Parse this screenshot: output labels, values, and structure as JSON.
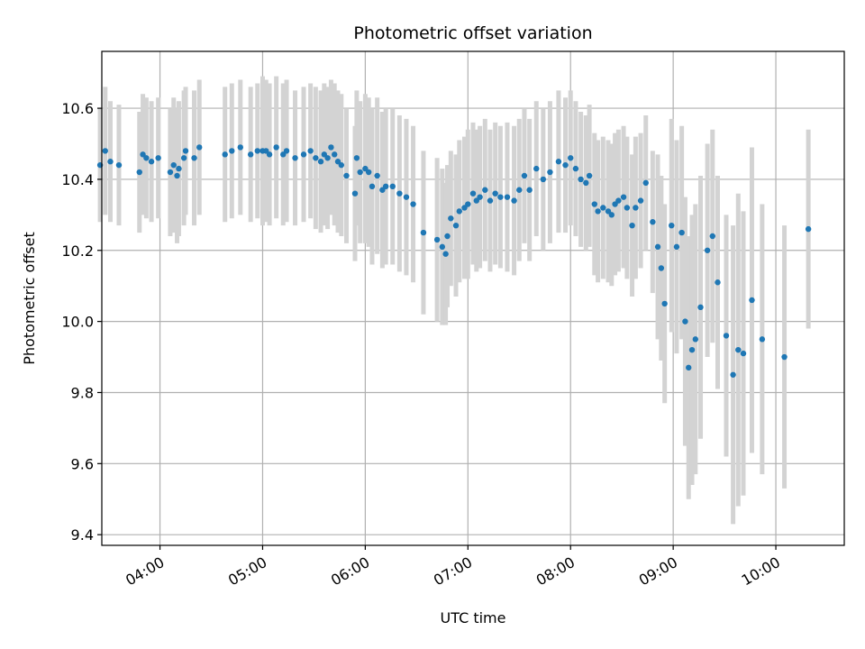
{
  "chart_data": {
    "type": "scatter",
    "title": "Photometric offset variation",
    "xlabel": "UTC time",
    "ylabel": "Photometric offset",
    "x_ticks": [
      "04:00",
      "05:00",
      "06:00",
      "07:00",
      "08:00",
      "09:00",
      "10:00"
    ],
    "y_ticks": [
      "9.4",
      "9.6",
      "9.8",
      "10.0",
      "10.2",
      "10.4",
      "10.6"
    ],
    "xlim": [
      "03:26",
      "10:40"
    ],
    "ylim": [
      9.37,
      10.76
    ],
    "grid": true,
    "colors": {
      "points": "#1f77b4",
      "errorbars": "#d3d3d3",
      "grid": "#b0b0b0"
    },
    "series": [
      {
        "x": [
          "03:25",
          "03:28",
          "03:31",
          "03:36",
          "03:48",
          "03:50",
          "03:52",
          "03:55",
          "03:59",
          "04:06",
          "04:08",
          "04:10",
          "04:11",
          "04:14",
          "04:15",
          "04:20",
          "04:23",
          "04:38",
          "04:42",
          "04:47",
          "04:53",
          "04:57",
          "05:00",
          "05:02",
          "05:04",
          "05:08",
          "05:12",
          "05:14",
          "05:19",
          "05:24",
          "05:28",
          "05:31",
          "05:34",
          "05:36",
          "05:38",
          "05:40",
          "05:42",
          "05:44",
          "05:46",
          "05:49",
          "05:54",
          "05:55",
          "05:57",
          "06:00",
          "06:02",
          "06:04",
          "06:07",
          "06:10",
          "06:12",
          "06:16",
          "06:20",
          "06:24",
          "06:28",
          "06:34",
          "06:42",
          "06:45",
          "06:47",
          "06:48",
          "06:50",
          "06:53",
          "06:55",
          "06:58",
          "07:00",
          "07:03",
          "07:05",
          "07:07",
          "07:10",
          "07:13",
          "07:16",
          "07:19",
          "07:23",
          "07:27",
          "07:30",
          "07:33",
          "07:36",
          "07:40",
          "07:44",
          "07:48",
          "07:53",
          "07:57",
          "08:00",
          "08:03",
          "08:06",
          "08:09",
          "08:11",
          "08:14",
          "08:16",
          "08:19",
          "08:22",
          "08:24",
          "08:26",
          "08:28",
          "08:31",
          "08:33",
          "08:36",
          "08:38",
          "08:41",
          "08:44",
          "08:48",
          "08:51",
          "08:53",
          "08:55",
          "08:59",
          "09:02",
          "09:05",
          "09:07",
          "09:09",
          "09:11",
          "09:13",
          "09:16",
          "09:20",
          "09:23",
          "09:26",
          "09:31",
          "09:35",
          "09:38",
          "09:41",
          "09:46",
          "09:52",
          "10:05",
          "10:19"
        ],
        "y": [
          10.44,
          10.48,
          10.45,
          10.44,
          10.42,
          10.47,
          10.46,
          10.45,
          10.46,
          10.42,
          10.44,
          10.41,
          10.43,
          10.46,
          10.48,
          10.46,
          10.49,
          10.47,
          10.48,
          10.49,
          10.47,
          10.48,
          10.48,
          10.48,
          10.47,
          10.49,
          10.47,
          10.48,
          10.46,
          10.47,
          10.48,
          10.46,
          10.45,
          10.47,
          10.46,
          10.49,
          10.47,
          10.45,
          10.44,
          10.41,
          10.36,
          10.46,
          10.42,
          10.43,
          10.42,
          10.38,
          10.41,
          10.37,
          10.38,
          10.38,
          10.36,
          10.35,
          10.33,
          10.25,
          10.23,
          10.21,
          10.19,
          10.24,
          10.29,
          10.27,
          10.31,
          10.32,
          10.33,
          10.36,
          10.34,
          10.35,
          10.37,
          10.34,
          10.36,
          10.35,
          10.35,
          10.34,
          10.37,
          10.41,
          10.37,
          10.43,
          10.4,
          10.42,
          10.45,
          10.44,
          10.46,
          10.43,
          10.4,
          10.39,
          10.41,
          10.33,
          10.31,
          10.32,
          10.31,
          10.3,
          10.33,
          10.34,
          10.35,
          10.32,
          10.27,
          10.32,
          10.34,
          10.39,
          10.28,
          10.21,
          10.15,
          10.05,
          10.27,
          10.21,
          10.25,
          10.0,
          9.87,
          9.92,
          9.95,
          10.04,
          10.2,
          10.24,
          10.11,
          9.96,
          9.85,
          9.92,
          9.91,
          10.06,
          9.95,
          9.9,
          10.26
        ],
        "err": [
          0.16,
          0.18,
          0.17,
          0.17,
          0.17,
          0.17,
          0.17,
          0.17,
          0.17,
          0.18,
          0.19,
          0.19,
          0.19,
          0.19,
          0.18,
          0.19,
          0.19,
          0.19,
          0.19,
          0.19,
          0.19,
          0.19,
          0.21,
          0.2,
          0.2,
          0.2,
          0.2,
          0.2,
          0.19,
          0.19,
          0.19,
          0.2,
          0.2,
          0.2,
          0.2,
          0.19,
          0.2,
          0.2,
          0.2,
          0.19,
          0.19,
          0.19,
          0.2,
          0.21,
          0.21,
          0.22,
          0.22,
          0.22,
          0.22,
          0.22,
          0.22,
          0.22,
          0.22,
          0.23,
          0.23,
          0.22,
          0.2,
          0.2,
          0.19,
          0.2,
          0.2,
          0.2,
          0.21,
          0.2,
          0.2,
          0.2,
          0.2,
          0.2,
          0.2,
          0.2,
          0.21,
          0.21,
          0.2,
          0.19,
          0.2,
          0.19,
          0.2,
          0.2,
          0.2,
          0.19,
          0.19,
          0.19,
          0.19,
          0.19,
          0.2,
          0.2,
          0.2,
          0.2,
          0.2,
          0.2,
          0.2,
          0.2,
          0.2,
          0.2,
          0.2,
          0.2,
          0.19,
          0.19,
          0.2,
          0.26,
          0.26,
          0.28,
          0.3,
          0.3,
          0.3,
          0.35,
          0.37,
          0.38,
          0.38,
          0.37,
          0.3,
          0.3,
          0.3,
          0.34,
          0.42,
          0.44,
          0.4,
          0.43,
          0.38,
          0.37,
          0.28
        ]
      }
    ]
  }
}
